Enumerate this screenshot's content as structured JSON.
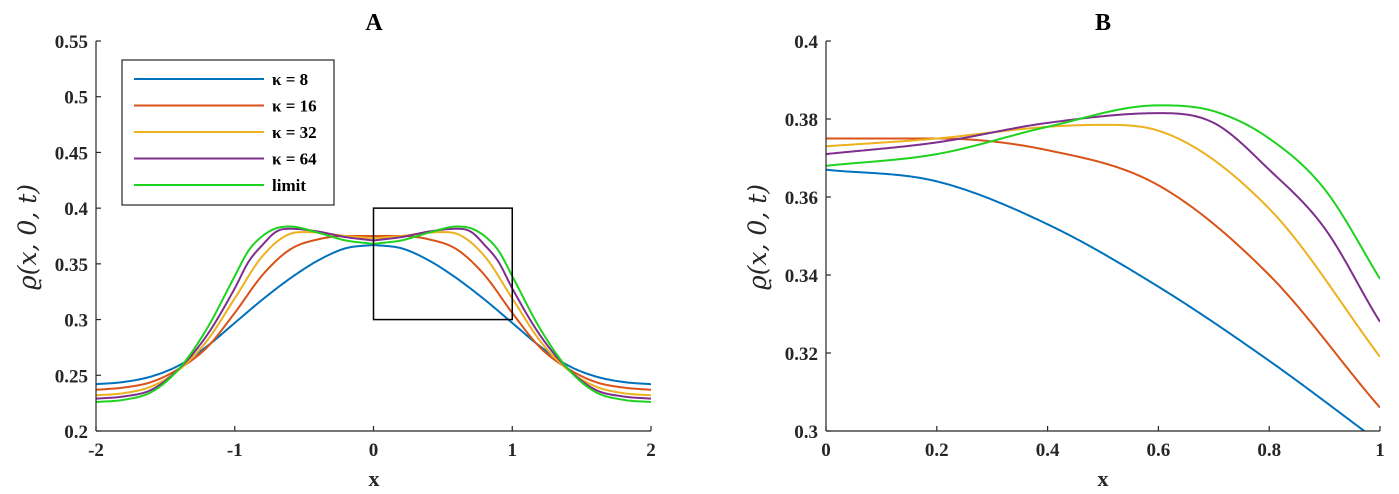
{
  "chart_data": [
    {
      "type": "line",
      "title": "A",
      "xlabel": "x",
      "ylabel": "ϱ(x, 0, t)",
      "xlim": [
        -2,
        2
      ],
      "ylim": [
        0.2,
        0.55
      ],
      "xticks": [
        -2,
        -1,
        0,
        1,
        2
      ],
      "xtick_labels": [
        "-2",
        "-1",
        "0",
        "1",
        "2"
      ],
      "yticks": [
        0.2,
        0.25,
        0.3,
        0.35,
        0.4,
        0.45,
        0.5,
        0.55
      ],
      "ytick_labels": [
        "0.2",
        "0.25",
        "0.3",
        "0.35",
        "0.4",
        "0.45",
        "0.5",
        "0.55"
      ],
      "legend_position": "top-left",
      "grid": false,
      "annotations": [
        {
          "type": "zoom-box",
          "x_range": [
            0,
            1
          ],
          "y_range": [
            0.3,
            0.4
          ]
        }
      ],
      "series": [
        {
          "name": "κ = 8",
          "color": "#0072BD",
          "x": [
            0,
            0.2,
            0.4,
            0.6,
            0.8,
            1.0,
            1.2,
            1.4,
            1.6,
            1.8,
            2.0
          ],
          "y": [
            0.367,
            0.364,
            0.353,
            0.337,
            0.318,
            0.297,
            0.276,
            0.259,
            0.249,
            0.244,
            0.242
          ]
        },
        {
          "name": "κ = 16",
          "color": "#D95319",
          "x": [
            0,
            0.2,
            0.4,
            0.6,
            0.8,
            1.0,
            1.2,
            1.4,
            1.6,
            1.8,
            2.0
          ],
          "y": [
            0.375,
            0.375,
            0.372,
            0.363,
            0.34,
            0.306,
            0.275,
            0.256,
            0.244,
            0.239,
            0.237
          ]
        },
        {
          "name": "κ = 32",
          "color": "#EDB120",
          "x": [
            0,
            0.2,
            0.4,
            0.5,
            0.6,
            0.8,
            1.0,
            1.2,
            1.4,
            1.6,
            1.8,
            2.0
          ],
          "y": [
            0.373,
            0.375,
            0.378,
            0.3785,
            0.377,
            0.357,
            0.319,
            0.281,
            0.255,
            0.24,
            0.234,
            0.232
          ]
        },
        {
          "name": "κ = 64",
          "color": "#7E2F8E",
          "x": [
            0,
            0.2,
            0.4,
            0.6,
            0.7,
            0.8,
            0.9,
            1.0,
            1.2,
            1.4,
            1.6,
            1.8,
            2.0
          ],
          "y": [
            0.371,
            0.374,
            0.379,
            0.3815,
            0.379,
            0.367,
            0.352,
            0.328,
            0.286,
            0.256,
            0.237,
            0.231,
            0.229
          ]
        },
        {
          "name": "limit",
          "color": "#1ED21E",
          "x": [
            0,
            0.2,
            0.4,
            0.6,
            0.7,
            0.8,
            0.9,
            1.0,
            1.2,
            1.4,
            1.6,
            1.8,
            2.0
          ],
          "y": [
            0.368,
            0.371,
            0.378,
            0.3835,
            0.382,
            0.375,
            0.362,
            0.339,
            0.292,
            0.256,
            0.235,
            0.228,
            0.226
          ]
        }
      ]
    },
    {
      "type": "line",
      "title": "B",
      "xlabel": "x",
      "ylabel": "ϱ(x, 0, t)",
      "xlim": [
        0,
        1
      ],
      "ylim": [
        0.3,
        0.4
      ],
      "xticks": [
        0,
        0.2,
        0.4,
        0.6,
        0.8,
        1
      ],
      "xtick_labels": [
        "0",
        "0.2",
        "0.4",
        "0.6",
        "0.8",
        "1"
      ],
      "yticks": [
        0.3,
        0.32,
        0.34,
        0.36,
        0.38,
        0.4
      ],
      "ytick_labels": [
        "0.3",
        "0.32",
        "0.34",
        "0.36",
        "0.38",
        "0.4"
      ],
      "grid": false,
      "series_ref": "same five series as panel A, shown for x in [0, 1]"
    }
  ]
}
